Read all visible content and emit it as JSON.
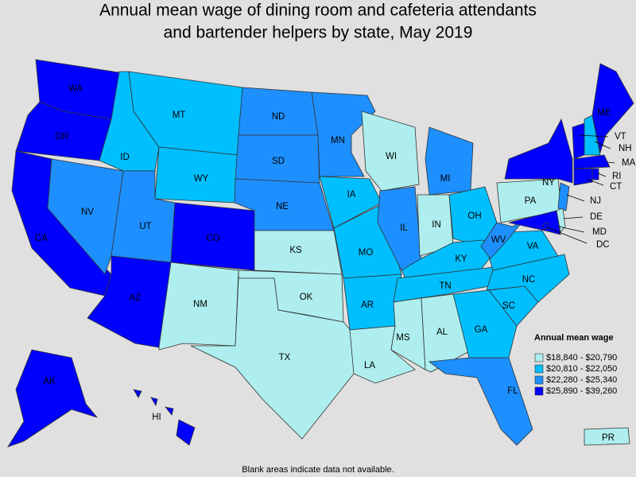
{
  "title": [
    "Annual mean wage of dining room and cafeteria attendants",
    "and bartender helpers by state, May 2019"
  ],
  "legend": {
    "title": "Annual mean wage",
    "items": [
      {
        "label": "$18,840 - $20,790",
        "color": "#aeeeee"
      },
      {
        "label": "$20,810 - $22,050",
        "color": "#00bfff"
      },
      {
        "label": "$22,280 - $25,340",
        "color": "#1e8fff"
      },
      {
        "label": "$25,890 - $39,260",
        "color": "#0000ff"
      }
    ]
  },
  "states": [
    {
      "name": "WA",
      "color": "#0000ff"
    },
    {
      "name": "OR",
      "color": "#0000ff"
    },
    {
      "name": "CA",
      "color": "#0000ff"
    },
    {
      "name": "NV",
      "color": "#1e8fff"
    },
    {
      "name": "ID",
      "color": "#00bfff"
    },
    {
      "name": "MT",
      "color": "#00bfff"
    },
    {
      "name": "WY",
      "color": "#00bfff"
    },
    {
      "name": "UT",
      "color": "#1e8fff"
    },
    {
      "name": "AZ",
      "color": "#0000ff"
    },
    {
      "name": "CO",
      "color": "#0000ff"
    },
    {
      "name": "NM",
      "color": "#aeeeee"
    },
    {
      "name": "ND",
      "color": "#1e8fff"
    },
    {
      "name": "SD",
      "color": "#1e8fff"
    },
    {
      "name": "NE",
      "color": "#1e8fff"
    },
    {
      "name": "KS",
      "color": "#aeeeee"
    },
    {
      "name": "OK",
      "color": "#aeeeee"
    },
    {
      "name": "TX",
      "color": "#aeeeee"
    },
    {
      "name": "MN",
      "color": "#1e8fff"
    },
    {
      "name": "IA",
      "color": "#00bfff"
    },
    {
      "name": "MO",
      "color": "#00bfff"
    },
    {
      "name": "AR",
      "color": "#00bfff"
    },
    {
      "name": "LA",
      "color": "#aeeeee"
    },
    {
      "name": "WI",
      "color": "#aeeeee"
    },
    {
      "name": "IL",
      "color": "#1e8fff"
    },
    {
      "name": "IN",
      "color": "#aeeeee"
    },
    {
      "name": "MI",
      "color": "#1e8fff"
    },
    {
      "name": "OH",
      "color": "#00bfff"
    },
    {
      "name": "KY",
      "color": "#00bfff"
    },
    {
      "name": "TN",
      "color": "#00bfff"
    },
    {
      "name": "MS",
      "color": "#aeeeee"
    },
    {
      "name": "AL",
      "color": "#aeeeee"
    },
    {
      "name": "GA",
      "color": "#00bfff"
    },
    {
      "name": "FL",
      "color": "#1e8fff"
    },
    {
      "name": "SC",
      "color": "#00bfff"
    },
    {
      "name": "NC",
      "color": "#00bfff"
    },
    {
      "name": "VA",
      "color": "#00bfff"
    },
    {
      "name": "WV",
      "color": "#1e8fff"
    },
    {
      "name": "PA",
      "color": "#aeeeee"
    },
    {
      "name": "NY",
      "color": "#0000ff"
    },
    {
      "name": "NJ",
      "color": "#1e8fff"
    },
    {
      "name": "DE",
      "color": "#aeeeee"
    },
    {
      "name": "MD",
      "color": "#0000ff"
    },
    {
      "name": "DC",
      "color": "#0000ff"
    },
    {
      "name": "VT",
      "color": "#0000ff"
    },
    {
      "name": "NH",
      "color": "#00bfff"
    },
    {
      "name": "ME",
      "color": "#0000ff"
    },
    {
      "name": "MA",
      "color": "#0000ff"
    },
    {
      "name": "CT",
      "color": "#0000ff"
    },
    {
      "name": "RI",
      "color": "#0000ff"
    },
    {
      "name": "AK",
      "color": "#0000ff"
    },
    {
      "name": "HI",
      "color": "#0000ff"
    },
    {
      "name": "PR",
      "color": "#aeeeee"
    }
  ],
  "note": "Blank areas indicate data not available."
}
